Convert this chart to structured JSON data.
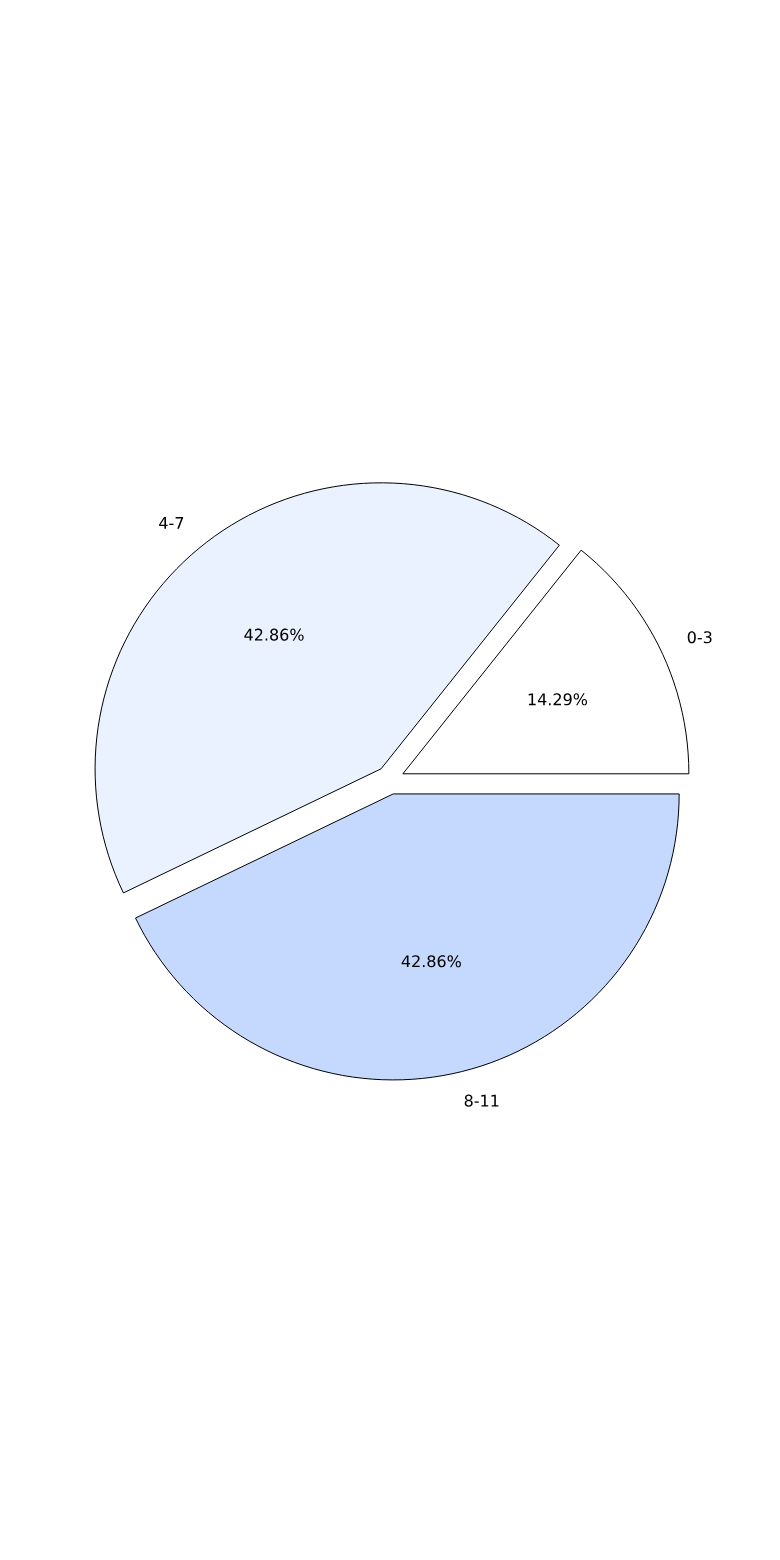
{
  "chart_data": {
    "type": "pie",
    "categories": [
      "0-3",
      "4-7",
      "8-11"
    ],
    "values": [
      14.29,
      42.86,
      42.86
    ],
    "value_labels": [
      "14.29%",
      "42.86%",
      "42.86%"
    ],
    "colors": [
      "#ffffff",
      "#ebf2ff",
      "#c5d9ff"
    ]
  }
}
